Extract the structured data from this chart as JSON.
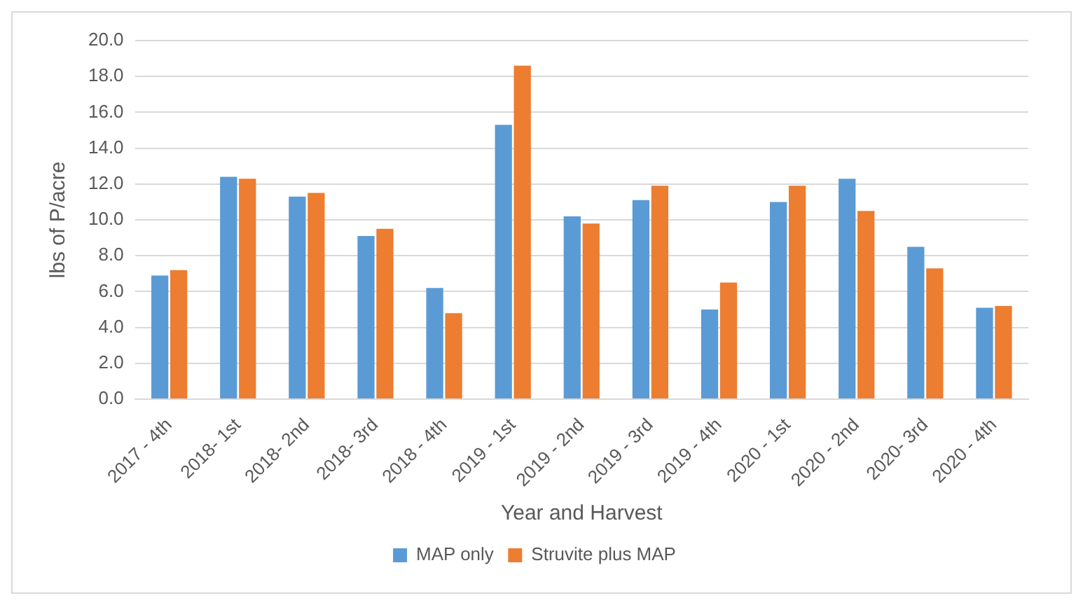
{
  "chart_data": {
    "type": "bar",
    "xlabel": "Year and Harvest",
    "ylabel": "lbs of P/acre",
    "categories": [
      "2017 - 4th",
      "2018- 1st",
      "2018- 2nd",
      "2018- 3rd",
      "2018 - 4th",
      "2019 - 1st",
      "2019 - 2nd",
      "2019 - 3rd",
      "2019 - 4th",
      "2020 - 1st",
      "2020 - 2nd",
      "2020- 3rd",
      "2020 - 4th"
    ],
    "series": [
      {
        "name": "MAP only",
        "color": "#5b9bd5",
        "values": [
          6.9,
          12.4,
          11.3,
          9.1,
          6.2,
          15.3,
          10.2,
          11.1,
          5.0,
          11.0,
          12.3,
          8.5,
          5.1
        ]
      },
      {
        "name": "Struvite plus MAP",
        "color": "#ed7d31",
        "values": [
          7.2,
          12.3,
          11.5,
          9.5,
          4.8,
          18.6,
          9.8,
          11.9,
          6.5,
          11.9,
          10.5,
          7.3,
          5.2
        ]
      }
    ],
    "ylim": [
      0,
      20
    ],
    "yticks": [
      {
        "value": 0,
        "label": "0.0"
      },
      {
        "value": 2,
        "label": "2.0"
      },
      {
        "value": 4,
        "label": "4.0"
      },
      {
        "value": 6,
        "label": "6.0"
      },
      {
        "value": 8,
        "label": "8.0"
      },
      {
        "value": 10,
        "label": "10.0"
      },
      {
        "value": 12,
        "label": "12.0"
      },
      {
        "value": 14,
        "label": "14.0"
      },
      {
        "value": 16,
        "label": "16.0"
      },
      {
        "value": 18,
        "label": "18.0"
      },
      {
        "value": 20,
        "label": "20.0"
      }
    ],
    "grid": "y",
    "legend": "bottom"
  }
}
